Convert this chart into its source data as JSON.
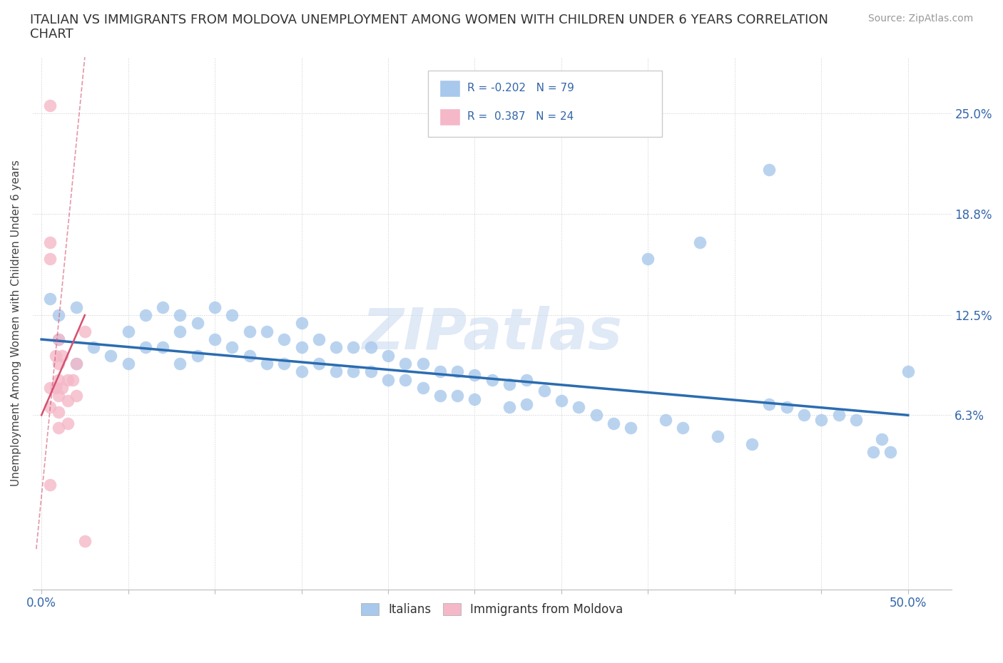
{
  "title": "ITALIAN VS IMMIGRANTS FROM MOLDOVA UNEMPLOYMENT AMONG WOMEN WITH CHILDREN UNDER 6 YEARS CORRELATION\nCHART",
  "source": "Source: ZipAtlas.com",
  "ylabel": "Unemployment Among Women with Children Under 6 years",
  "blue_R": -0.202,
  "blue_N": 79,
  "pink_R": 0.387,
  "pink_N": 24,
  "blue_color": "#A8C8EC",
  "pink_color": "#F5B8C8",
  "trend_blue_color": "#2B6CB0",
  "trend_pink_solid_color": "#D45070",
  "trend_pink_dash_color": "#F5B8C8",
  "watermark": "ZIPatlas",
  "watermark_color": "#C8D8F0",
  "legend_label_blue": "Italians",
  "legend_label_pink": "Immigrants from Moldova",
  "xlim_lo": -0.005,
  "xlim_hi": 0.525,
  "ylim_lo": -0.045,
  "ylim_hi": 0.285,
  "y_tick_positions": [
    0.063,
    0.125,
    0.188,
    0.25
  ],
  "y_tick_labels": [
    "6.3%",
    "12.5%",
    "18.8%",
    "25.0%"
  ],
  "x_tick_positions": [
    0.0,
    0.05,
    0.1,
    0.15,
    0.2,
    0.25,
    0.3,
    0.35,
    0.4,
    0.45,
    0.5
  ],
  "x_tick_labels": [
    "0.0%",
    "",
    "",
    "",
    "",
    "",
    "",
    "",
    "",
    "",
    "50.0%"
  ],
  "blue_trend_x0": 0.0,
  "blue_trend_y0": 0.11,
  "blue_trend_x1": 0.5,
  "blue_trend_y1": 0.063,
  "pink_trend_solid_x0": 0.0,
  "pink_trend_solid_y0": 0.063,
  "pink_trend_solid_x1": 0.025,
  "pink_trend_solid_y1": 0.125,
  "pink_trend_dash_x0": -0.003,
  "pink_trend_dash_y0": -0.02,
  "pink_trend_dash_x1": 0.025,
  "pink_trend_dash_y1": 0.285,
  "blue_dots_x": [
    0.005,
    0.01,
    0.01,
    0.02,
    0.02,
    0.03,
    0.04,
    0.05,
    0.05,
    0.06,
    0.06,
    0.07,
    0.07,
    0.08,
    0.08,
    0.08,
    0.09,
    0.09,
    0.1,
    0.1,
    0.11,
    0.11,
    0.12,
    0.12,
    0.13,
    0.13,
    0.14,
    0.14,
    0.15,
    0.15,
    0.15,
    0.16,
    0.16,
    0.17,
    0.17,
    0.18,
    0.18,
    0.19,
    0.19,
    0.2,
    0.2,
    0.21,
    0.21,
    0.22,
    0.22,
    0.23,
    0.23,
    0.24,
    0.24,
    0.25,
    0.25,
    0.26,
    0.27,
    0.27,
    0.28,
    0.28,
    0.29,
    0.3,
    0.31,
    0.32,
    0.33,
    0.34,
    0.36,
    0.37,
    0.39,
    0.41,
    0.43,
    0.44,
    0.45,
    0.46,
    0.47,
    0.48,
    0.485,
    0.49,
    0.5,
    0.42,
    0.38,
    0.35,
    0.42
  ],
  "blue_dots_y": [
    0.135,
    0.125,
    0.11,
    0.13,
    0.095,
    0.105,
    0.1,
    0.115,
    0.095,
    0.125,
    0.105,
    0.13,
    0.105,
    0.125,
    0.115,
    0.095,
    0.12,
    0.1,
    0.13,
    0.11,
    0.125,
    0.105,
    0.115,
    0.1,
    0.115,
    0.095,
    0.11,
    0.095,
    0.12,
    0.105,
    0.09,
    0.11,
    0.095,
    0.105,
    0.09,
    0.105,
    0.09,
    0.105,
    0.09,
    0.1,
    0.085,
    0.095,
    0.085,
    0.095,
    0.08,
    0.09,
    0.075,
    0.09,
    0.075,
    0.088,
    0.073,
    0.085,
    0.082,
    0.068,
    0.085,
    0.07,
    0.078,
    0.072,
    0.068,
    0.063,
    0.058,
    0.055,
    0.06,
    0.055,
    0.05,
    0.045,
    0.068,
    0.063,
    0.06,
    0.063,
    0.06,
    0.04,
    0.048,
    0.04,
    0.09,
    0.215,
    0.17,
    0.16,
    0.07
  ],
  "pink_dots_x": [
    0.005,
    0.005,
    0.005,
    0.005,
    0.005,
    0.005,
    0.008,
    0.008,
    0.01,
    0.01,
    0.01,
    0.01,
    0.01,
    0.01,
    0.012,
    0.012,
    0.015,
    0.015,
    0.015,
    0.018,
    0.02,
    0.02,
    0.025,
    0.025
  ],
  "pink_dots_y": [
    0.255,
    0.17,
    0.16,
    0.08,
    0.068,
    0.02,
    0.1,
    0.08,
    0.11,
    0.095,
    0.085,
    0.075,
    0.065,
    0.055,
    0.1,
    0.08,
    0.085,
    0.072,
    0.058,
    0.085,
    0.095,
    0.075,
    0.115,
    -0.015
  ]
}
